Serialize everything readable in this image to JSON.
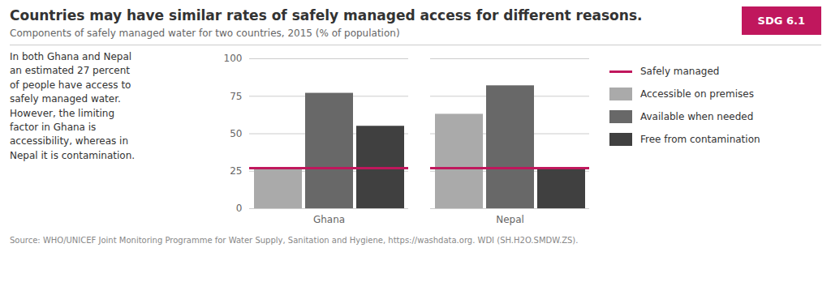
{
  "chart_data": {
    "type": "bar",
    "title": "Countries may have similar rates of safely managed access for different reasons.",
    "subtitle": "Components of safely managed water for two countries, 2015 (% of population)",
    "annotation": "In both Ghana and Nepal\nan estimated 27 percent\nof people have access to\nsafely managed water.\nHowever, the limiting\nfactor in Ghana is\naccessibility, whereas in\nNepal it is contamination.",
    "badge": {
      "text": "SDG 6.1",
      "color": "#c0175d",
      "text_color": "#ffffff"
    },
    "source": "Source: WHO/UNICEF Joint Monitoring Programme for Water Supply, Sanitation and Hygiene, https://washdata.org. WDI (SH.H2O.SMDW.ZS).",
    "categories": [
      "Ghana",
      "Nepal"
    ],
    "series": [
      {
        "name": "Safely managed",
        "type": "line",
        "color": "#c0175d",
        "values": [
          27,
          27
        ]
      },
      {
        "name": "Accessible on premises",
        "type": "bar",
        "color": "#aaaaaa",
        "values": [
          27,
          63
        ]
      },
      {
        "name": "Available when needed",
        "type": "bar",
        "color": "#686868",
        "values": [
          77,
          82
        ]
      },
      {
        "name": "Free from contamination",
        "type": "bar",
        "color": "#404040",
        "values": [
          55,
          27
        ]
      }
    ],
    "ylim": [
      0,
      100
    ],
    "yticks": [
      0,
      25,
      50,
      75,
      100
    ],
    "grid": true,
    "legend": "right"
  }
}
